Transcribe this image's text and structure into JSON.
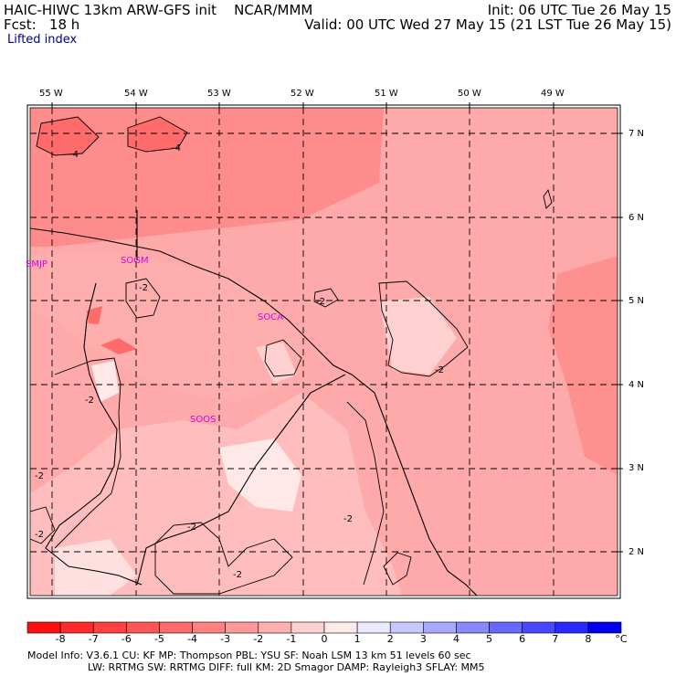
{
  "header": {
    "left_line1": "HAIC-HIWC 13km ARW-GFS init    NCAR/MMM",
    "left_line2": "Fcst:   18 h",
    "right_line1": "Init: 06 UTC Tue 26 May 15",
    "right_line2": "Valid: 00 UTC Wed 27 May 15 (21 LST Tue 26 May 15)",
    "field_name": "Lifted index"
  },
  "map": {
    "lon_labels": [
      "55 W",
      "54 W",
      "53 W",
      "52 W",
      "51 W",
      "50 W",
      "49 W"
    ],
    "lat_labels": [
      "7 N",
      "6 N",
      "5 N",
      "4 N",
      "3 N",
      "2 N"
    ],
    "stations": [
      "SMJP",
      "SOGM",
      "SOCA",
      "SOOS"
    ],
    "contour_labels": [
      "-4",
      "-4",
      "-2",
      "-2",
      "-2",
      "-2",
      "-2",
      "-2",
      "-2",
      "-2",
      "-2"
    ]
  },
  "colorbar": {
    "ticks": [
      "-8",
      "-7",
      "-6",
      "-5",
      "-4",
      "-3",
      "-2",
      "-1",
      "0",
      "1",
      "2",
      "3",
      "4",
      "5",
      "6",
      "7",
      "8"
    ],
    "unit": "°C",
    "colors": [
      "#ff1010",
      "#ff2a2a",
      "#ff4040",
      "#ff5656",
      "#ff6a6a",
      "#ff8282",
      "#ff9999",
      "#ffb0b0",
      "#ffd0d0",
      "#ffeaea",
      "#eaeaff",
      "#c8c8ff",
      "#a8a8ff",
      "#8888ff",
      "#6868ff",
      "#4848ff",
      "#2828ff",
      "#0000ee"
    ]
  },
  "footer": {
    "line1": "Model Info: V3.6.1     CU: KF        MP: Thompson     PBL: YSU       SF: Noah LSM      13 km    51 levels   60 sec",
    "line2": "LW: RRTMG    SW: RRTMG   DIFF: full    KM: 2D Smagor DAMP: Rayleigh3   SFLAY: MM5"
  }
}
